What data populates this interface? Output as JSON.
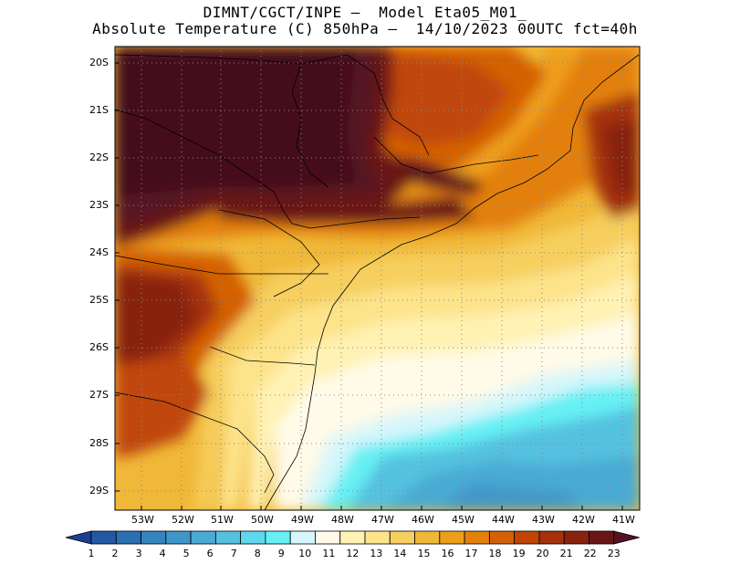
{
  "title": {
    "line1": "DIMNT/CGCT/INPE —  Model Eta05_M01_",
    "line2": "Absolute Temperature (C) 850hPa —  14/10/2023 00UTC fct=40h"
  },
  "axes": {
    "lat_labels": [
      "20S",
      "21S",
      "22S",
      "23S",
      "24S",
      "25S",
      "26S",
      "27S",
      "28S",
      "29S"
    ],
    "lon_labels": [
      "53W",
      "52W",
      "51W",
      "50W",
      "49W",
      "48W",
      "47W",
      "46W",
      "45W",
      "44W",
      "43W",
      "42W",
      "41W"
    ]
  },
  "colorbar": {
    "labels": [
      "1",
      "2",
      "3",
      "4",
      "5",
      "6",
      "7",
      "8",
      "9",
      "10",
      "11",
      "12",
      "13",
      "14",
      "15",
      "16",
      "17",
      "18",
      "19",
      "20",
      "21",
      "22",
      "23"
    ],
    "colors": [
      "#1d3f8f",
      "#2358a5",
      "#2c6fb5",
      "#3584bf",
      "#3f97c9",
      "#4aaad3",
      "#55c1e0",
      "#5fd8ec",
      "#66f0f4",
      "#d6f6fb",
      "#fffbe8",
      "#fff2b3",
      "#fde38a",
      "#f6cf5e",
      "#f0b838",
      "#ee9f1a",
      "#e3800b",
      "#d46106",
      "#c04608",
      "#a4300c",
      "#872211",
      "#6a1619",
      "#551220"
    ]
  }
}
